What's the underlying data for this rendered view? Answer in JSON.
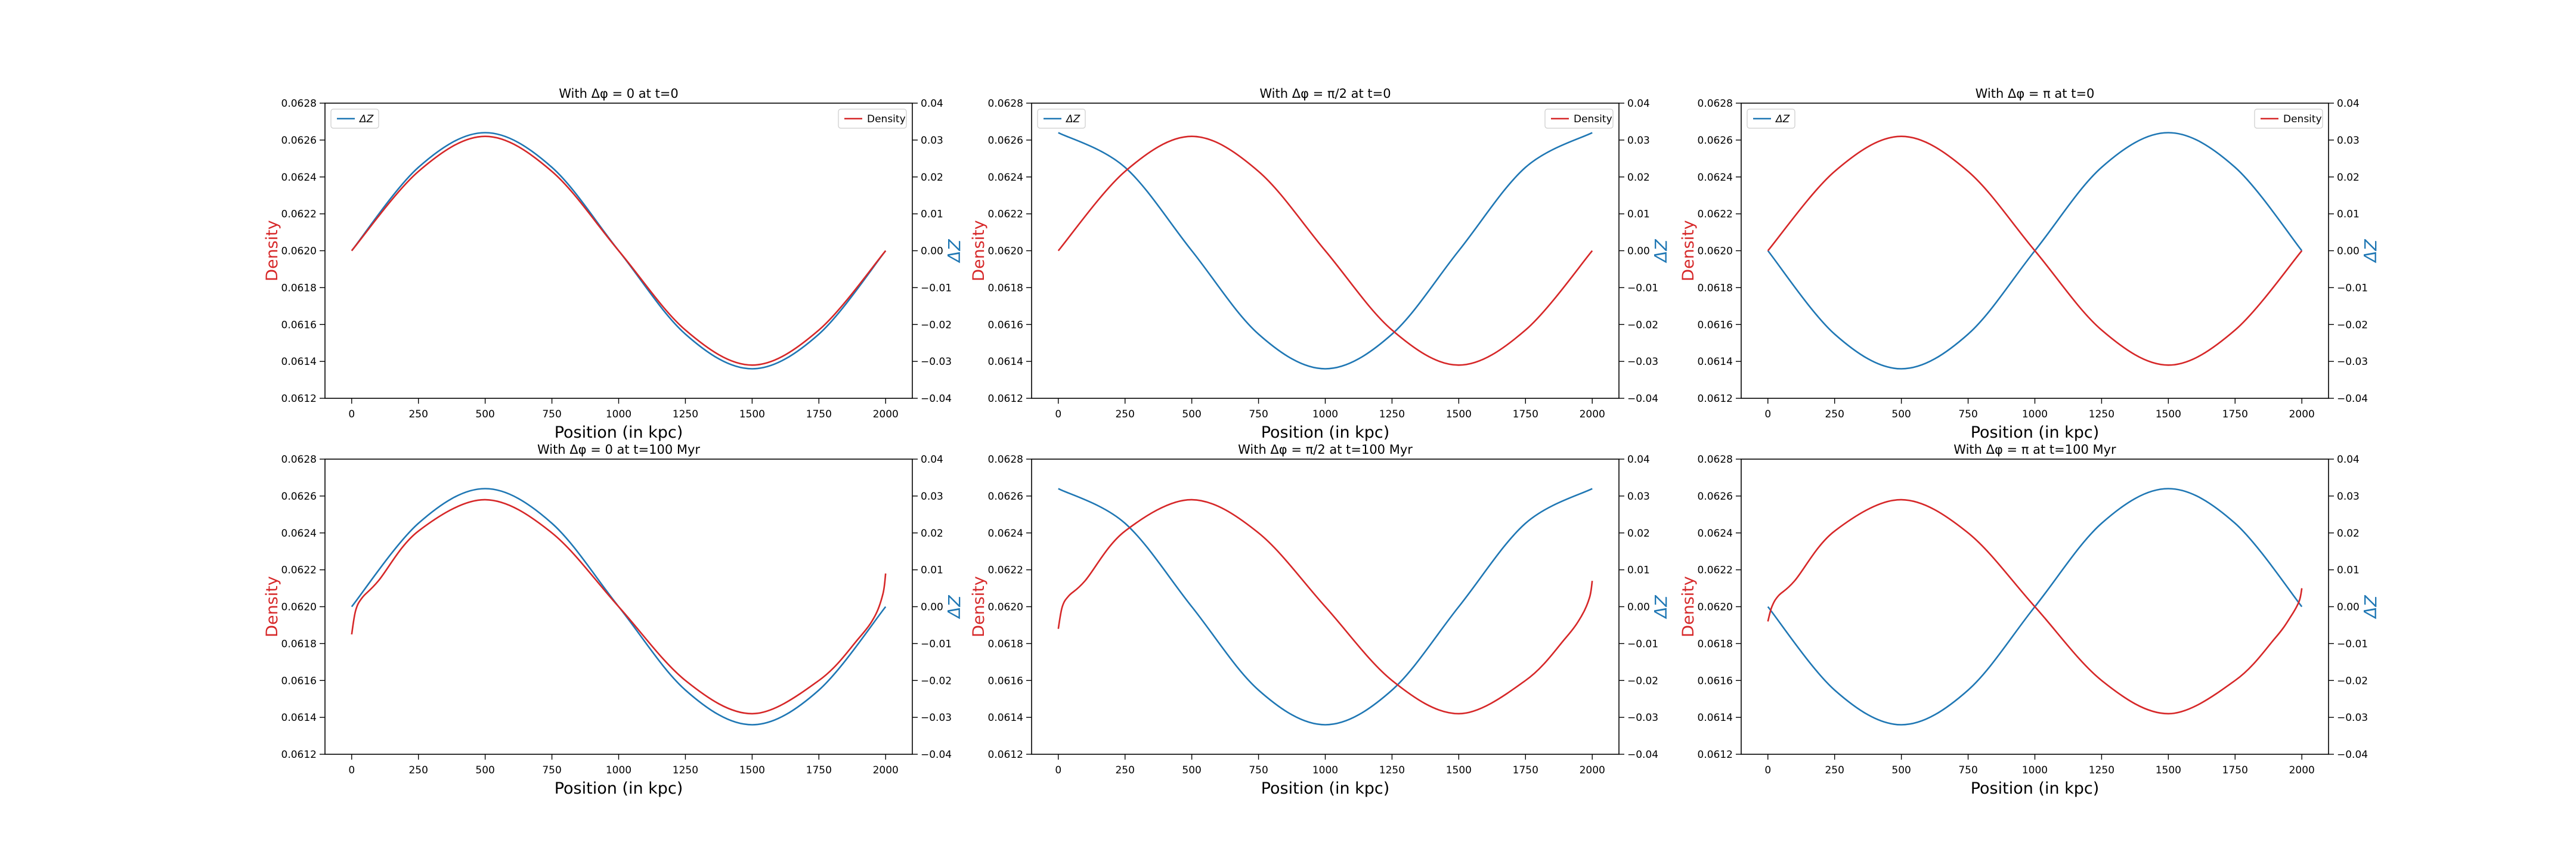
{
  "figure": {
    "colors": {
      "density": "#d62728",
      "dz": "#1f77b4",
      "axis": "#000000",
      "background": "#ffffff"
    }
  },
  "chart_data": [
    {
      "type": "line",
      "title": "With Δφ = 0 at t=0",
      "xlabel": "Position (in kpc)",
      "ylabel_left": "Density",
      "ylabel_right": "ΔZ",
      "xlim": [
        -100,
        2100
      ],
      "ylim_left": [
        0.0612,
        0.0628
      ],
      "ylim_right": [
        -0.04,
        0.04
      ],
      "x_ticks": [
        0,
        250,
        500,
        750,
        1000,
        1250,
        1500,
        1750,
        2000
      ],
      "y_ticks_left": [
        "0.0612",
        "0.0614",
        "0.0616",
        "0.0618",
        "0.0620",
        "0.0622",
        "0.0624",
        "0.0626",
        "0.0628"
      ],
      "y_ticks_right": [
        "−0.04",
        "−0.03",
        "−0.02",
        "−0.01",
        "0.00",
        "0.01",
        "0.02",
        "0.03",
        "0.04"
      ],
      "legend_left": "ΔZ",
      "legend_right": "Density",
      "series": [
        {
          "name": "Density",
          "axis": "left",
          "x": [
            0,
            250,
            500,
            750,
            1000,
            1250,
            1500,
            1750,
            2000
          ],
          "y": [
            0.062,
            0.06243,
            0.06262,
            0.06243,
            0.062,
            0.06157,
            0.06138,
            0.06157,
            0.062
          ]
        },
        {
          "name": "ΔZ",
          "axis": "right",
          "x": [
            0,
            250,
            500,
            750,
            1000,
            1250,
            1500,
            1750,
            2000
          ],
          "y": [
            0.0,
            0.0226,
            0.032,
            0.0226,
            0.0,
            -0.0226,
            -0.032,
            -0.0226,
            0.0
          ]
        }
      ]
    },
    {
      "type": "line",
      "title": "With Δφ = π/2 at t=0",
      "xlabel": "Position (in kpc)",
      "ylabel_left": "Density",
      "ylabel_right": "ΔZ",
      "xlim": [
        -100,
        2100
      ],
      "ylim_left": [
        0.0612,
        0.0628
      ],
      "ylim_right": [
        -0.04,
        0.04
      ],
      "x_ticks": [
        0,
        250,
        500,
        750,
        1000,
        1250,
        1500,
        1750,
        2000
      ],
      "y_ticks_left": [
        "0.0612",
        "0.0614",
        "0.0616",
        "0.0618",
        "0.0620",
        "0.0622",
        "0.0624",
        "0.0626",
        "0.0628"
      ],
      "y_ticks_right": [
        "−0.04",
        "−0.03",
        "−0.02",
        "−0.01",
        "0.00",
        "0.01",
        "0.02",
        "0.03",
        "0.04"
      ],
      "legend_left": "ΔZ",
      "legend_right": "Density",
      "series": [
        {
          "name": "Density",
          "axis": "left",
          "x": [
            0,
            250,
            500,
            750,
            1000,
            1250,
            1500,
            1750,
            2000
          ],
          "y": [
            0.062,
            0.06243,
            0.06262,
            0.06243,
            0.062,
            0.06157,
            0.06138,
            0.06157,
            0.062
          ]
        },
        {
          "name": "ΔZ",
          "axis": "right",
          "x": [
            0,
            250,
            500,
            750,
            1000,
            1250,
            1500,
            1750,
            2000
          ],
          "y": [
            0.032,
            0.0226,
            0.0,
            -0.0226,
            -0.032,
            -0.0226,
            0.0,
            0.0226,
            0.032
          ]
        }
      ]
    },
    {
      "type": "line",
      "title": "With Δφ = π at t=0",
      "xlabel": "Position (in kpc)",
      "ylabel_left": "Density",
      "ylabel_right": "ΔZ",
      "xlim": [
        -100,
        2100
      ],
      "ylim_left": [
        0.0612,
        0.0628
      ],
      "ylim_right": [
        -0.04,
        0.04
      ],
      "x_ticks": [
        0,
        250,
        500,
        750,
        1000,
        1250,
        1500,
        1750,
        2000
      ],
      "y_ticks_left": [
        "0.0612",
        "0.0614",
        "0.0616",
        "0.0618",
        "0.0620",
        "0.0622",
        "0.0624",
        "0.0626",
        "0.0628"
      ],
      "y_ticks_right": [
        "−0.04",
        "−0.03",
        "−0.02",
        "−0.01",
        "0.00",
        "0.01",
        "0.02",
        "0.03",
        "0.04"
      ],
      "legend_left": "ΔZ",
      "legend_right": "Density",
      "series": [
        {
          "name": "Density",
          "axis": "left",
          "x": [
            0,
            250,
            500,
            750,
            1000,
            1250,
            1500,
            1750,
            2000
          ],
          "y": [
            0.062,
            0.06243,
            0.06262,
            0.06243,
            0.062,
            0.06157,
            0.06138,
            0.06157,
            0.062
          ]
        },
        {
          "name": "ΔZ",
          "axis": "right",
          "x": [
            0,
            250,
            500,
            750,
            1000,
            1250,
            1500,
            1750,
            2000
          ],
          "y": [
            0.0,
            -0.0226,
            -0.032,
            -0.0226,
            0.0,
            0.0226,
            0.032,
            0.0226,
            0.0
          ]
        }
      ]
    },
    {
      "type": "line",
      "title": "With Δφ = 0 at t=100 Myr",
      "xlabel": "Position (in kpc)",
      "ylabel_left": "Density",
      "ylabel_right": "ΔZ",
      "xlim": [
        -100,
        2100
      ],
      "ylim_left": [
        0.0612,
        0.0628
      ],
      "ylim_right": [
        -0.04,
        0.04
      ],
      "x_ticks": [
        0,
        250,
        500,
        750,
        1000,
        1250,
        1500,
        1750,
        2000
      ],
      "y_ticks_left": [
        "0.0612",
        "0.0614",
        "0.0616",
        "0.0618",
        "0.0620",
        "0.0622",
        "0.0624",
        "0.0626",
        "0.0628"
      ],
      "y_ticks_right": [
        "−0.04",
        "−0.03",
        "−0.02",
        "−0.01",
        "0.00",
        "0.01",
        "0.02",
        "0.03",
        "0.04"
      ],
      "legend_left": "",
      "legend_right": "",
      "series": [
        {
          "name": "Density",
          "axis": "left",
          "x": [
            0,
            15,
            40,
            100,
            250,
            500,
            750,
            1000,
            1250,
            1500,
            1750,
            1900,
            1960,
            1990,
            2000
          ],
          "y": [
            0.06185,
            0.06198,
            0.06205,
            0.06214,
            0.06241,
            0.06258,
            0.0624,
            0.062,
            0.0616,
            0.06142,
            0.0616,
            0.06183,
            0.06195,
            0.06207,
            0.06218
          ]
        },
        {
          "name": "ΔZ",
          "axis": "right",
          "x": [
            0,
            250,
            500,
            750,
            1000,
            1250,
            1500,
            1750,
            2000
          ],
          "y": [
            0.0,
            0.0226,
            0.032,
            0.0226,
            0.0,
            -0.0226,
            -0.032,
            -0.0226,
            0.0
          ]
        }
      ]
    },
    {
      "type": "line",
      "title": "With Δφ = π/2 at t=100 Myr",
      "xlabel": "Position (in kpc)",
      "ylabel_left": "Density",
      "ylabel_right": "ΔZ",
      "xlim": [
        -100,
        2100
      ],
      "ylim_left": [
        0.0612,
        0.0628
      ],
      "ylim_right": [
        -0.04,
        0.04
      ],
      "x_ticks": [
        0,
        250,
        500,
        750,
        1000,
        1250,
        1500,
        1750,
        2000
      ],
      "y_ticks_left": [
        "0.0612",
        "0.0614",
        "0.0616",
        "0.0618",
        "0.0620",
        "0.0622",
        "0.0624",
        "0.0626",
        "0.0628"
      ],
      "y_ticks_right": [
        "−0.04",
        "−0.03",
        "−0.02",
        "−0.01",
        "0.00",
        "0.01",
        "0.02",
        "0.03",
        "0.04"
      ],
      "legend_left": "",
      "legend_right": "",
      "series": [
        {
          "name": "Density",
          "axis": "left",
          "x": [
            0,
            15,
            40,
            100,
            250,
            500,
            750,
            1000,
            1250,
            1500,
            1750,
            1900,
            1960,
            1990,
            2000
          ],
          "y": [
            0.06188,
            0.062,
            0.06206,
            0.06214,
            0.06241,
            0.06258,
            0.0624,
            0.062,
            0.0616,
            0.06142,
            0.0616,
            0.06183,
            0.06195,
            0.06205,
            0.06214
          ]
        },
        {
          "name": "ΔZ",
          "axis": "right",
          "x": [
            0,
            250,
            500,
            750,
            1000,
            1250,
            1500,
            1750,
            2000
          ],
          "y": [
            0.032,
            0.0226,
            0.0,
            -0.0226,
            -0.032,
            -0.0226,
            0.0,
            0.0226,
            0.032
          ]
        }
      ]
    },
    {
      "type": "line",
      "title": "With Δφ = π at t=100 Myr",
      "xlabel": "Position (in kpc)",
      "ylabel_left": "Density",
      "ylabel_right": "ΔZ",
      "xlim": [
        -100,
        2100
      ],
      "ylim_left": [
        0.0612,
        0.0628
      ],
      "ylim_right": [
        -0.04,
        0.04
      ],
      "x_ticks": [
        0,
        250,
        500,
        750,
        1000,
        1250,
        1500,
        1750,
        2000
      ],
      "y_ticks_left": [
        "0.0612",
        "0.0614",
        "0.0616",
        "0.0618",
        "0.0620",
        "0.0622",
        "0.0624",
        "0.0626",
        "0.0628"
      ],
      "y_ticks_right": [
        "−0.04",
        "−0.03",
        "−0.02",
        "−0.01",
        "0.00",
        "0.01",
        "0.02",
        "0.03",
        "0.04"
      ],
      "legend_left": "",
      "legend_right": "",
      "series": [
        {
          "name": "Density",
          "axis": "left",
          "x": [
            0,
            15,
            40,
            100,
            250,
            500,
            750,
            1000,
            1250,
            1500,
            1750,
            1900,
            1960,
            1990,
            2000
          ],
          "y": [
            0.06192,
            0.062,
            0.06206,
            0.06214,
            0.06241,
            0.06258,
            0.0624,
            0.062,
            0.0616,
            0.06142,
            0.0616,
            0.06183,
            0.06195,
            0.06203,
            0.0621
          ]
        },
        {
          "name": "ΔZ",
          "axis": "right",
          "x": [
            0,
            250,
            500,
            750,
            1000,
            1250,
            1500,
            1750,
            2000
          ],
          "y": [
            0.0,
            -0.0226,
            -0.032,
            -0.0226,
            0.0,
            0.0226,
            0.032,
            0.0226,
            0.0
          ]
        }
      ]
    }
  ]
}
